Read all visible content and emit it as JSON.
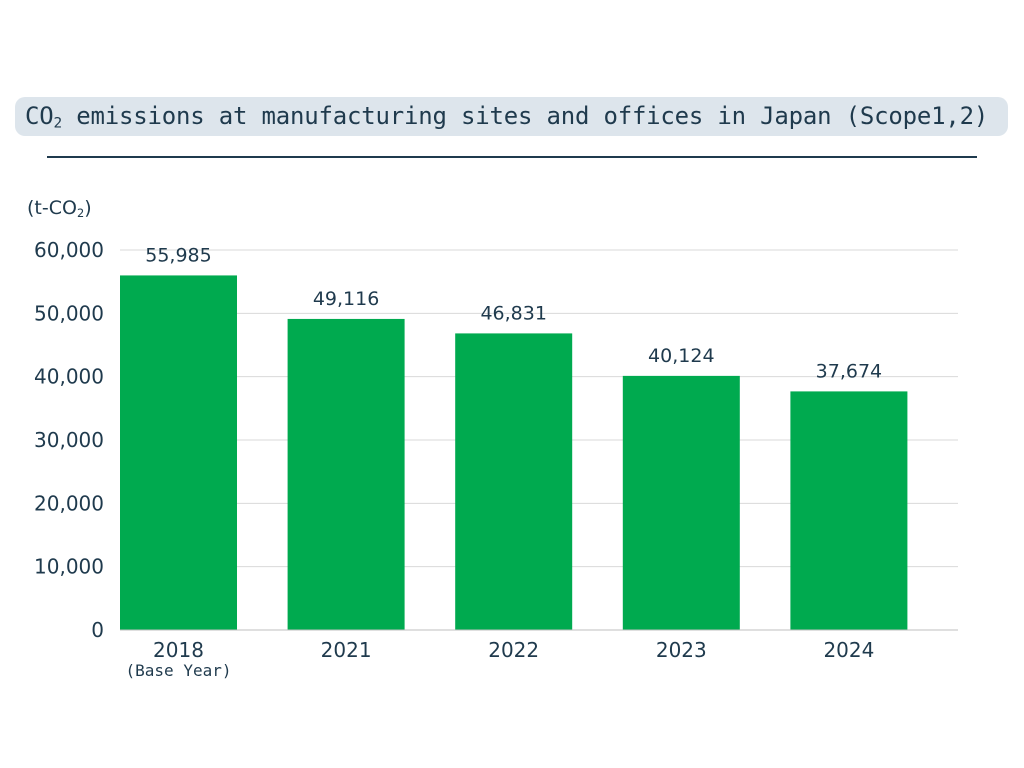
{
  "title": {
    "prefix": "CO",
    "subscript": "2",
    "suffix": " emissions at manufacturing sites and offices in Japan (Scope1,2)"
  },
  "unit": {
    "prefix": "(t-CO",
    "subscript": "2",
    "suffix": ")"
  },
  "colors": {
    "bar": "#00aa4f",
    "text": "#1f3a4d",
    "title_background": "#dde5ec",
    "gridline": "#d9d9d9"
  },
  "chart_data": {
    "type": "bar",
    "categories": [
      "2018",
      "2021",
      "2022",
      "2023",
      "2024"
    ],
    "category_notes": [
      "(Base Year)",
      "",
      "",
      "",
      ""
    ],
    "values": [
      55985,
      49116,
      46831,
      40124,
      37674
    ],
    "data_labels": [
      "55,985",
      "49,116",
      "46,831",
      "40,124",
      "37,674"
    ],
    "yticks": [
      "0",
      "10,000",
      "20,000",
      "30,000",
      "40,000",
      "50,000",
      "60,000"
    ],
    "ylim": [
      0,
      60000
    ],
    "ylabel": "(t-CO2)",
    "grid": true,
    "legend": "none"
  }
}
